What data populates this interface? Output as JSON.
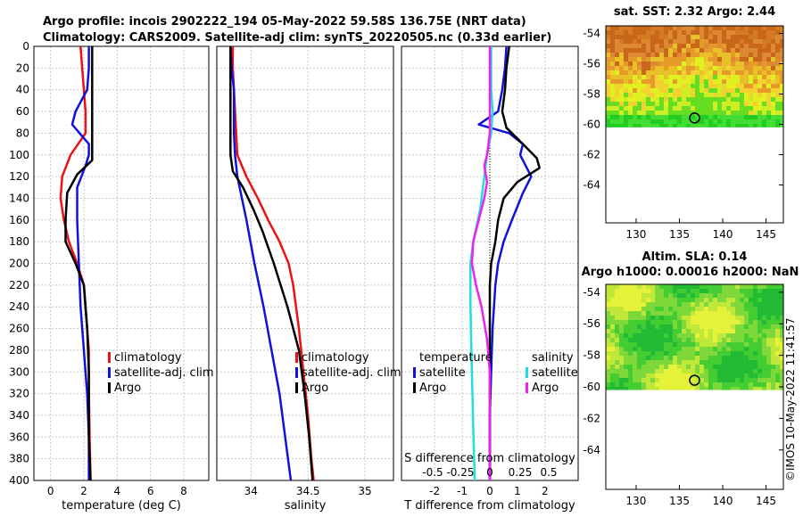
{
  "figure": {
    "title_line1": "Argo profile: incois 2902222_194 05-May-2022 59.58S 136.75E (NRT data)",
    "title_line2": "Climatology: CARS2009. Satellite-adj clim: synTS_20220505.nc (0.33d earlier)",
    "side_label": "©IMOS 10-May-2022 11:41:57"
  },
  "colors": {
    "climatology": "#ee1111",
    "satellite": "#1111dd",
    "argo": "#000000",
    "sat_salinity": "#22dddd",
    "argo_salinity": "#ee22ee"
  },
  "depth_ticks": [
    "0",
    "20",
    "40",
    "60",
    "80",
    "100",
    "120",
    "140",
    "160",
    "180",
    "200",
    "220",
    "240",
    "260",
    "280",
    "300",
    "320",
    "340",
    "360",
    "380",
    "400"
  ],
  "chart_data": [
    {
      "type": "line",
      "id": "temperature",
      "xlabel": "temperature (deg C)",
      "ylabel": "depth",
      "xlim": [
        -1,
        9.5
      ],
      "ylim": [
        400,
        0
      ],
      "xticks": [
        0,
        2,
        4,
        6,
        8
      ],
      "xtick_labels": [
        "0",
        "2",
        "4",
        "6",
        "8"
      ],
      "legend": [
        "climatology",
        "satellite-adj. clim",
        "Argo"
      ],
      "series": [
        {
          "name": "climatology",
          "color_key": "climatology",
          "points": [
            [
              1.8,
              0
            ],
            [
              1.9,
              20
            ],
            [
              2.0,
              40
            ],
            [
              2.1,
              60
            ],
            [
              2.1,
              80
            ],
            [
              1.2,
              100
            ],
            [
              0.7,
              120
            ],
            [
              0.6,
              140
            ],
            [
              0.8,
              160
            ],
            [
              1.1,
              180
            ],
            [
              1.6,
              200
            ],
            [
              2.0,
              220
            ],
            [
              2.1,
              240
            ],
            [
              2.2,
              260
            ],
            [
              2.3,
              280
            ],
            [
              2.3,
              320
            ],
            [
              2.35,
              360
            ],
            [
              2.4,
              400
            ]
          ]
        },
        {
          "name": "satellite-adj. clim",
          "color_key": "satellite",
          "points": [
            [
              2.3,
              0
            ],
            [
              2.3,
              20
            ],
            [
              2.2,
              40
            ],
            [
              1.5,
              60
            ],
            [
              1.3,
              72
            ],
            [
              2.3,
              90
            ],
            [
              2.3,
              100
            ],
            [
              2.1,
              110
            ],
            [
              1.6,
              130
            ],
            [
              1.6,
              160
            ],
            [
              1.7,
              200
            ],
            [
              1.8,
              240
            ],
            [
              2.0,
              280
            ],
            [
              2.2,
              320
            ],
            [
              2.3,
              360
            ],
            [
              2.3,
              400
            ]
          ]
        },
        {
          "name": "Argo",
          "color_key": "argo",
          "points": [
            [
              2.5,
              0
            ],
            [
              2.5,
              20
            ],
            [
              2.5,
              60
            ],
            [
              2.5,
              100
            ],
            [
              2.5,
              105
            ],
            [
              1.6,
              118
            ],
            [
              1.0,
              135
            ],
            [
              0.9,
              160
            ],
            [
              0.9,
              180
            ],
            [
              1.5,
              200
            ],
            [
              2.0,
              220
            ],
            [
              2.2,
              260
            ],
            [
              2.3,
              300
            ],
            [
              2.3,
              360
            ],
            [
              2.4,
              400
            ]
          ]
        }
      ]
    },
    {
      "type": "line",
      "id": "salinity",
      "xlabel": "salinity",
      "ylabel": "depth",
      "xlim": [
        33.7,
        35.25
      ],
      "ylim": [
        400,
        0
      ],
      "xticks": [
        34,
        34.5,
        35
      ],
      "xtick_labels": [
        "34",
        "34.5",
        "35"
      ],
      "legend": [
        "climatology",
        "satellite-adj. clim",
        "Argo"
      ],
      "series": [
        {
          "name": "climatology",
          "color_key": "climatology",
          "points": [
            [
              33.84,
              0
            ],
            [
              33.84,
              20
            ],
            [
              33.85,
              40
            ],
            [
              33.87,
              80
            ],
            [
              33.88,
              100
            ],
            [
              33.96,
              120
            ],
            [
              34.06,
              140
            ],
            [
              34.15,
              160
            ],
            [
              34.25,
              180
            ],
            [
              34.33,
              200
            ],
            [
              34.37,
              220
            ],
            [
              34.42,
              260
            ],
            [
              34.46,
              300
            ],
            [
              34.5,
              340
            ],
            [
              34.53,
              380
            ],
            [
              34.55,
              400
            ]
          ]
        },
        {
          "name": "satellite-adj. clim",
          "color_key": "satellite",
          "points": [
            [
              33.82,
              0
            ],
            [
              33.83,
              20
            ],
            [
              33.85,
              40
            ],
            [
              33.85,
              60
            ],
            [
              33.85,
              80
            ],
            [
              33.86,
              100
            ],
            [
              33.88,
              120
            ],
            [
              33.92,
              140
            ],
            [
              33.96,
              160
            ],
            [
              34.03,
              200
            ],
            [
              34.11,
              240
            ],
            [
              34.18,
              280
            ],
            [
              34.25,
              320
            ],
            [
              34.3,
              360
            ],
            [
              34.35,
              400
            ]
          ]
        },
        {
          "name": "Argo",
          "color_key": "argo",
          "points": [
            [
              33.82,
              0
            ],
            [
              33.82,
              20
            ],
            [
              33.82,
              60
            ],
            [
              33.82,
              100
            ],
            [
              33.84,
              115
            ],
            [
              33.93,
              130
            ],
            [
              34.02,
              150
            ],
            [
              34.1,
              170
            ],
            [
              34.2,
              200
            ],
            [
              34.32,
              240
            ],
            [
              34.42,
              280
            ],
            [
              34.47,
              320
            ],
            [
              34.51,
              360
            ],
            [
              34.54,
              400
            ]
          ]
        }
      ]
    },
    {
      "type": "line",
      "id": "difference",
      "xlabel": "T difference from climatology",
      "xlabel_top": "S difference from climatology",
      "ylabel": "depth",
      "xlim": [
        -3.2,
        3.2
      ],
      "ylim": [
        400,
        0
      ],
      "xticks": [
        -2,
        -1,
        0,
        1,
        2
      ],
      "xtick_labels": [
        "-2",
        "-1",
        "0",
        "1",
        "2"
      ],
      "s_xticks": [
        -2,
        -1,
        0,
        1,
        2
      ],
      "s_xtick_labels": [
        "-0.5",
        "-0.25",
        "0",
        "0.25",
        "0.5"
      ],
      "legend_temp_header": "temperature",
      "legend_sal_header": "salinity",
      "legend_temp": [
        "satellite",
        "Argo"
      ],
      "legend_sal": [
        "satellite",
        "Argo"
      ],
      "series": [
        {
          "name": "T satellite",
          "color_key": "satellite",
          "points": [
            [
              0.6,
              0
            ],
            [
              0.55,
              20
            ],
            [
              0.45,
              40
            ],
            [
              0.3,
              60
            ],
            [
              -0.4,
              72
            ],
            [
              0.7,
              80
            ],
            [
              1.2,
              90
            ],
            [
              1.1,
              100
            ],
            [
              1.3,
              110
            ],
            [
              1.5,
              120
            ],
            [
              1.2,
              135
            ],
            [
              0.8,
              160
            ],
            [
              0.5,
              180
            ],
            [
              0.3,
              200
            ],
            [
              0.2,
              220
            ],
            [
              0.1,
              260
            ],
            [
              0.05,
              300
            ],
            [
              0.0,
              340
            ],
            [
              0.0,
              400
            ]
          ]
        },
        {
          "name": "T Argo",
          "color_key": "argo",
          "points": [
            [
              0.7,
              0
            ],
            [
              0.6,
              20
            ],
            [
              0.55,
              40
            ],
            [
              0.45,
              60
            ],
            [
              0.6,
              75
            ],
            [
              1.2,
              90
            ],
            [
              1.7,
              103
            ],
            [
              1.8,
              112
            ],
            [
              1.0,
              125
            ],
            [
              0.5,
              140
            ],
            [
              0.3,
              160
            ],
            [
              0.2,
              180
            ],
            [
              0.05,
              200
            ],
            [
              0.0,
              220
            ],
            [
              0.0,
              260
            ],
            [
              0.0,
              300
            ],
            [
              0.0,
              400
            ]
          ]
        },
        {
          "name": "S satellite",
          "color_key": "sat_salinity",
          "points": [
            [
              0.05,
              0
            ],
            [
              0.05,
              40
            ],
            [
              0.1,
              60
            ],
            [
              0.05,
              80
            ],
            [
              -0.1,
              100
            ],
            [
              -0.2,
              120
            ],
            [
              -0.35,
              150
            ],
            [
              -0.6,
              180
            ],
            [
              -0.7,
              200
            ],
            [
              -0.7,
              240
            ],
            [
              -0.65,
              300
            ],
            [
              -0.6,
              350
            ],
            [
              -0.55,
              400
            ]
          ]
        },
        {
          "name": "S Argo",
          "color_key": "argo_salinity",
          "points": [
            [
              0.0,
              0
            ],
            [
              0.0,
              20
            ],
            [
              0.0,
              60
            ],
            [
              0.0,
              80
            ],
            [
              -0.1,
              100
            ],
            [
              -0.2,
              110
            ],
            [
              -0.1,
              125
            ],
            [
              -0.2,
              140
            ],
            [
              -0.4,
              160
            ],
            [
              -0.6,
              180
            ],
            [
              -0.65,
              200
            ],
            [
              -0.5,
              220
            ],
            [
              -0.3,
              240
            ],
            [
              -0.1,
              270
            ],
            [
              0.0,
              300
            ],
            [
              0.0,
              400
            ]
          ]
        }
      ]
    },
    {
      "type": "heatmap",
      "id": "sst_map",
      "title": "sat. SST: 2.32 Argo: 2.44",
      "xlim": [
        126.5,
        147
      ],
      "ylim": [
        -66.5,
        -53.5
      ],
      "data_lat_range": [
        -60.2,
        -53.5
      ],
      "xticks": [
        130,
        135,
        140,
        145
      ],
      "xtick_labels": [
        "130",
        "135",
        "140",
        "145"
      ],
      "yticks": [
        -54,
        -56,
        -58,
        -60,
        -62,
        -64
      ],
      "ytick_labels": [
        "-54",
        "-56",
        "-58",
        "-60",
        "-62",
        "-64"
      ],
      "argo_position": [
        136.75,
        -59.58
      ]
    },
    {
      "type": "heatmap",
      "id": "sla_map",
      "title": "Altim. SLA: 0.14",
      "subtitle": "Argo h1000: 0.00016 h2000: NaN",
      "xlim": [
        126.5,
        147
      ],
      "ylim": [
        -66.5,
        -53.5
      ],
      "data_lat_range": [
        -60.2,
        -53.5
      ],
      "xticks": [
        130,
        135,
        140,
        145
      ],
      "xtick_labels": [
        "130",
        "135",
        "140",
        "145"
      ],
      "yticks": [
        -54,
        -56,
        -58,
        -60,
        -62,
        -64
      ],
      "ytick_labels": [
        "-54",
        "-56",
        "-58",
        "-60",
        "-62",
        "-64"
      ],
      "argo_position": [
        136.75,
        -59.58
      ]
    }
  ]
}
